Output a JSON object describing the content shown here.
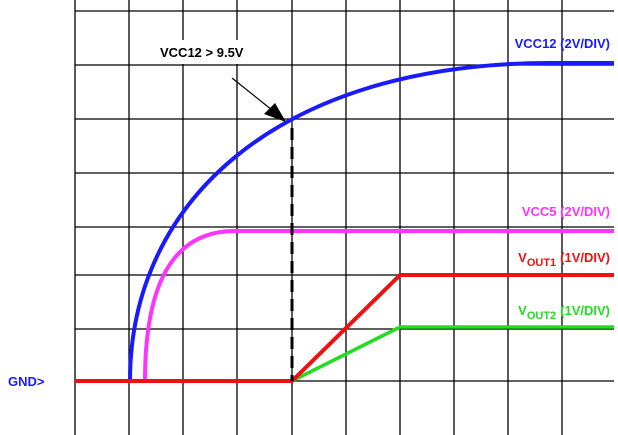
{
  "annotation": "VCC12 > 9.5V",
  "traces": [
    {
      "label": "VCC12 (2V/DIV)"
    },
    {
      "label": "VCC5 (2V/DIV)"
    },
    {
      "main": "V",
      "sub": "OUT1",
      "suffix": "(1V/DIV)"
    },
    {
      "main": "V",
      "sub": "OUT2",
      "suffix": "(1V/DIV)"
    }
  ],
  "ground": "GND>"
}
